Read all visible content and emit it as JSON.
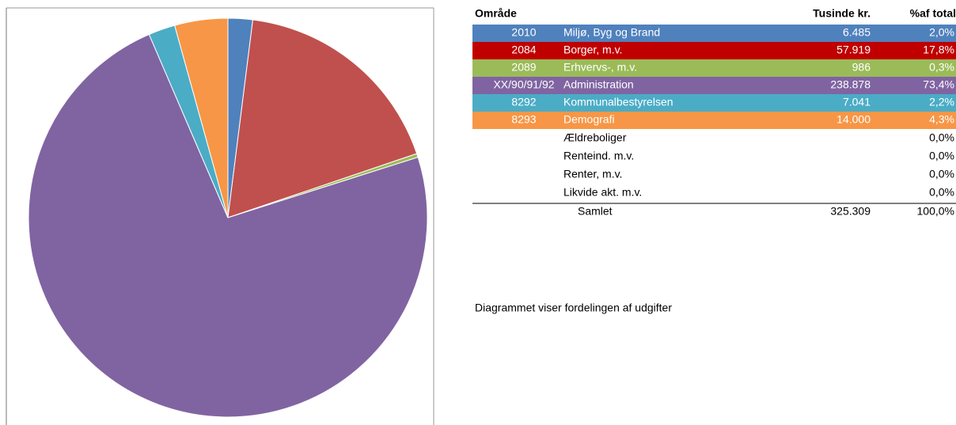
{
  "chart_data": {
    "type": "pie",
    "codes": [
      "2010",
      "2084",
      "2089",
      "XX/90/91/92",
      "8292",
      "8293"
    ],
    "categories": [
      "Miljø, Byg og Brand",
      "Borger, m.v.",
      "Erhvervs-, m.v.",
      "Administration",
      "Kommunalbestyrelsen",
      "Demografi"
    ],
    "values": [
      6485,
      57919,
      986,
      238878,
      7041,
      14000
    ],
    "value_labels": [
      "6.485",
      "57.919",
      "986",
      "238.878",
      "7.041",
      "14.000"
    ],
    "percent_labels": [
      "2,0%",
      "17,8%",
      "0,3%",
      "73,4%",
      "2,2%",
      "4,3%"
    ],
    "colors": [
      "#4f81bd",
      "#c0504d",
      "#9bbb59",
      "#8064a2",
      "#4bacc6",
      "#f79646"
    ],
    "row_colors": [
      "#4f81bd",
      "#c00000",
      "#9bbb59",
      "#8064a2",
      "#4bacc6",
      "#f79646"
    ]
  },
  "table": {
    "header": [
      "Område",
      "Tusinde kr.",
      "%af total"
    ],
    "extra_rows": [
      [
        "Ældreboliger",
        "0,0%"
      ],
      [
        "Renteind. m.v.",
        "0,0%"
      ],
      [
        "Renter, m.v.",
        "0,0%"
      ],
      [
        "Likvide akt. m.v.",
        "0,0%"
      ]
    ],
    "total": [
      "Samlet",
      "325.309",
      "100,0%"
    ]
  },
  "note": "Diagrammet viser fordelingen af udgifter"
}
